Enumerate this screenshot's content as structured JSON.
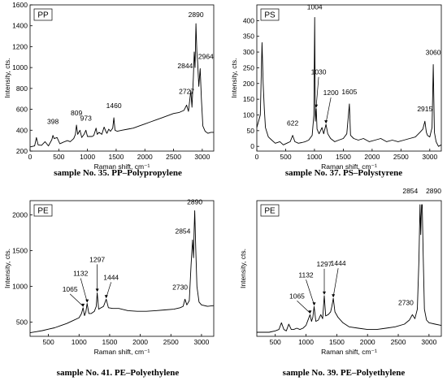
{
  "chart_data": [
    {
      "type": "line",
      "label": "PP",
      "caption": "sample No. 35. PP–Polypropylene",
      "xlabel": "Raman shift, cm⁻¹",
      "ylabel": "Intensity, cts.",
      "xlim": [
        0,
        3200
      ],
      "ylim": [
        200,
        1600
      ],
      "xticks": [
        0,
        500,
        1000,
        1500,
        2000,
        2500,
        3000
      ],
      "yticks": [
        200,
        400,
        600,
        800,
        1000,
        1200,
        1400,
        1600
      ],
      "x": [
        0,
        80,
        110,
        140,
        200,
        260,
        320,
        380,
        398,
        420,
        470,
        520,
        560,
        600,
        650,
        700,
        760,
        790,
        809,
        830,
        870,
        900,
        940,
        973,
        1000,
        1040,
        1080,
        1110,
        1150,
        1170,
        1200,
        1250,
        1290,
        1320,
        1340,
        1370,
        1400,
        1440,
        1460,
        1480,
        1520,
        1600,
        1700,
        1800,
        1900,
        2000,
        2100,
        2200,
        2300,
        2400,
        2500,
        2600,
        2680,
        2727,
        2760,
        2800,
        2820,
        2844,
        2860,
        2875,
        2890,
        2905,
        2920,
        2940,
        2964,
        2985,
        3010,
        3050,
        3100,
        3150,
        3200
      ],
      "y": [
        240,
        250,
        330,
        260,
        255,
        290,
        250,
        310,
        350,
        320,
        330,
        270,
        280,
        290,
        300,
        290,
        320,
        360,
        450,
        360,
        400,
        330,
        360,
        400,
        340,
        340,
        340,
        350,
        420,
        360,
        380,
        360,
        430,
        390,
        370,
        410,
        390,
        420,
        520,
        400,
        390,
        400,
        410,
        420,
        440,
        460,
        480,
        500,
        520,
        540,
        560,
        570,
        590,
        640,
        580,
        780,
        620,
        900,
        1150,
        1000,
        1420,
        1150,
        1050,
        820,
        990,
        700,
        440,
        390,
        370,
        380,
        380
      ],
      "annotations": [
        {
          "text": "398",
          "x": 398,
          "y": 350
        },
        {
          "text": "809",
          "x": 809,
          "y": 450
        },
        {
          "text": "973",
          "x": 973,
          "y": 400
        },
        {
          "text": "1460",
          "x": 1460,
          "y": 520
        },
        {
          "text": "2727",
          "x": 2727,
          "y": 640
        },
        {
          "text": "2844",
          "x": 2844,
          "y": 900
        },
        {
          "text": "2890",
          "x": 2890,
          "y": 1420
        },
        {
          "text": "2964",
          "x": 2964,
          "y": 990
        }
      ]
    },
    {
      "type": "line",
      "label": "PS",
      "caption": "sample No. 37. PS–Polystyrene",
      "xlabel": "Raman shift, cm⁻¹",
      "ylabel": "Intensity, cts.",
      "xlim": [
        0,
        3200
      ],
      "ylim": [
        -15,
        450
      ],
      "xticks": [
        0,
        500,
        1000,
        1500,
        2000,
        2500,
        3000
      ],
      "yticks": [
        0,
        50,
        100,
        150,
        200,
        250,
        300,
        350,
        400
      ],
      "x": [
        0,
        60,
        90,
        110,
        130,
        150,
        200,
        260,
        320,
        400,
        460,
        520,
        580,
        622,
        660,
        720,
        780,
        840,
        900,
        960,
        990,
        1004,
        1015,
        1030,
        1045,
        1080,
        1130,
        1160,
        1200,
        1230,
        1280,
        1350,
        1420,
        1500,
        1560,
        1605,
        1625,
        1680,
        1760,
        1850,
        1950,
        2050,
        2150,
        2250,
        2350,
        2450,
        2550,
        2650,
        2750,
        2830,
        2880,
        2915,
        2940,
        2960,
        3000,
        3040,
        3060,
        3080,
        3110,
        3150,
        3200
      ],
      "y": [
        60,
        100,
        330,
        200,
        120,
        60,
        30,
        20,
        10,
        15,
        5,
        10,
        15,
        35,
        15,
        10,
        12,
        15,
        20,
        35,
        100,
        410,
        80,
        120,
        55,
        40,
        60,
        40,
        70,
        40,
        25,
        15,
        20,
        25,
        40,
        135,
        35,
        25,
        20,
        25,
        15,
        20,
        25,
        15,
        20,
        15,
        20,
        25,
        30,
        45,
        55,
        80,
        45,
        35,
        30,
        60,
        260,
        45,
        15,
        0,
        5
      ],
      "annotations": [
        {
          "text": "622",
          "x": 622,
          "y": 35
        },
        {
          "text": "1004",
          "x": 1004,
          "y": 410
        },
        {
          "text": "1030",
          "x": 1030,
          "y": 120
        },
        {
          "text": "1200",
          "x": 1200,
          "y": 70
        },
        {
          "text": "1605",
          "x": 1605,
          "y": 135
        },
        {
          "text": "2915",
          "x": 2915,
          "y": 80
        },
        {
          "text": "3060",
          "x": 3060,
          "y": 260
        }
      ]
    },
    {
      "type": "line",
      "label": "PE",
      "caption": "sample No. 41. PE–Polyethylene",
      "xlabel": "Raman shift, cm⁻¹",
      "ylabel": "Intensity, cts.",
      "xlim": [
        200,
        3200
      ],
      "ylim": [
        300,
        2200
      ],
      "xticks": [
        500,
        1000,
        1500,
        2000,
        2500,
        3000
      ],
      "yticks": [
        500,
        1000,
        1500,
        2000
      ],
      "x": [
        200,
        300,
        400,
        500,
        600,
        700,
        800,
        900,
        1000,
        1040,
        1065,
        1090,
        1110,
        1132,
        1160,
        1200,
        1250,
        1280,
        1297,
        1320,
        1360,
        1400,
        1444,
        1480,
        1550,
        1650,
        1800,
        1950,
        2100,
        2250,
        2400,
        2550,
        2650,
        2700,
        2730,
        2760,
        2800,
        2830,
        2854,
        2870,
        2880,
        2890,
        2905,
        2925,
        2960,
        3000,
        3100,
        3200
      ],
      "y": [
        350,
        365,
        380,
        400,
        420,
        450,
        480,
        520,
        560,
        620,
        700,
        590,
        640,
        760,
        620,
        620,
        650,
        720,
        910,
        680,
        700,
        720,
        820,
        700,
        690,
        690,
        660,
        650,
        650,
        660,
        670,
        680,
        700,
        720,
        820,
        740,
        800,
        1300,
        1650,
        1400,
        1800,
        2060,
        1550,
        1000,
        780,
        740,
        720,
        730
      ],
      "annotations": [
        {
          "text": "1065",
          "x": 1065,
          "y": 700
        },
        {
          "text": "1132",
          "x": 1132,
          "y": 760
        },
        {
          "text": "1297",
          "x": 1297,
          "y": 910
        },
        {
          "text": "1444",
          "x": 1444,
          "y": 820
        },
        {
          "text": "2730",
          "x": 2730,
          "y": 820
        },
        {
          "text": "2854",
          "x": 2854,
          "y": 1650
        },
        {
          "text": "2890",
          "x": 2890,
          "y": 2060
        }
      ]
    },
    {
      "type": "line",
      "label": "PE",
      "caption": "sample No. 39. PE–Polyethylene",
      "xlabel": "Raman shift, cm⁻¹",
      "ylabel": "Intensity, cts.",
      "xlim": [
        200,
        3200
      ],
      "ylim": [
        0,
        100
      ],
      "xticks": [
        500,
        1000,
        1500,
        2000,
        2500,
        3000
      ],
      "yticks": [],
      "x": [
        200,
        300,
        400,
        500,
        560,
        600,
        640,
        680,
        720,
        760,
        800,
        850,
        900,
        950,
        1000,
        1040,
        1065,
        1090,
        1110,
        1132,
        1160,
        1200,
        1240,
        1270,
        1297,
        1320,
        1360,
        1400,
        1420,
        1444,
        1470,
        1520,
        1600,
        1700,
        1850,
        2000,
        2150,
        2300,
        2450,
        2600,
        2680,
        2730,
        2770,
        2810,
        2835,
        2854,
        2865,
        2872,
        2880,
        2890,
        2905,
        2925,
        2960,
        3000,
        3100,
        3200
      ],
      "y": [
        3,
        3,
        3,
        4,
        5,
        10,
        5,
        4,
        9,
        5,
        5,
        6,
        5,
        6,
        8,
        13,
        16,
        11,
        14,
        22,
        11,
        12,
        16,
        13,
        30,
        15,
        16,
        18,
        22,
        28,
        18,
        14,
        10,
        7,
        6,
        5,
        5,
        6,
        7,
        9,
        12,
        16,
        13,
        20,
        55,
        97,
        75,
        88,
        97,
        97,
        60,
        20,
        12,
        10,
        9,
        8
      ],
      "annotations": [
        {
          "text": "1065",
          "x": 1065,
          "y": 16
        },
        {
          "text": "1132",
          "x": 1132,
          "y": 22
        },
        {
          "text": "1297",
          "x": 1297,
          "y": 30
        },
        {
          "text": "1444",
          "x": 1444,
          "y": 28
        },
        {
          "text": "2730",
          "x": 2730,
          "y": 16
        },
        {
          "text": "2854",
          "x": 2854,
          "y": 97
        },
        {
          "text": "2890",
          "x": 2890,
          "y": 97
        }
      ]
    }
  ]
}
